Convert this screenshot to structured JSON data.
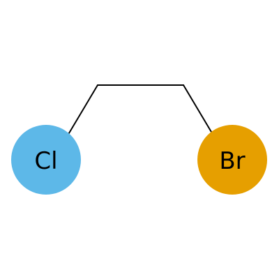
{
  "molecule": {
    "atoms": [
      {
        "symbol": "Cl",
        "color": "#5DB8E8"
      },
      {
        "symbol": "Br",
        "color": "#E69F00"
      }
    ],
    "bond_color": "#000000",
    "label_color": "#000000"
  }
}
